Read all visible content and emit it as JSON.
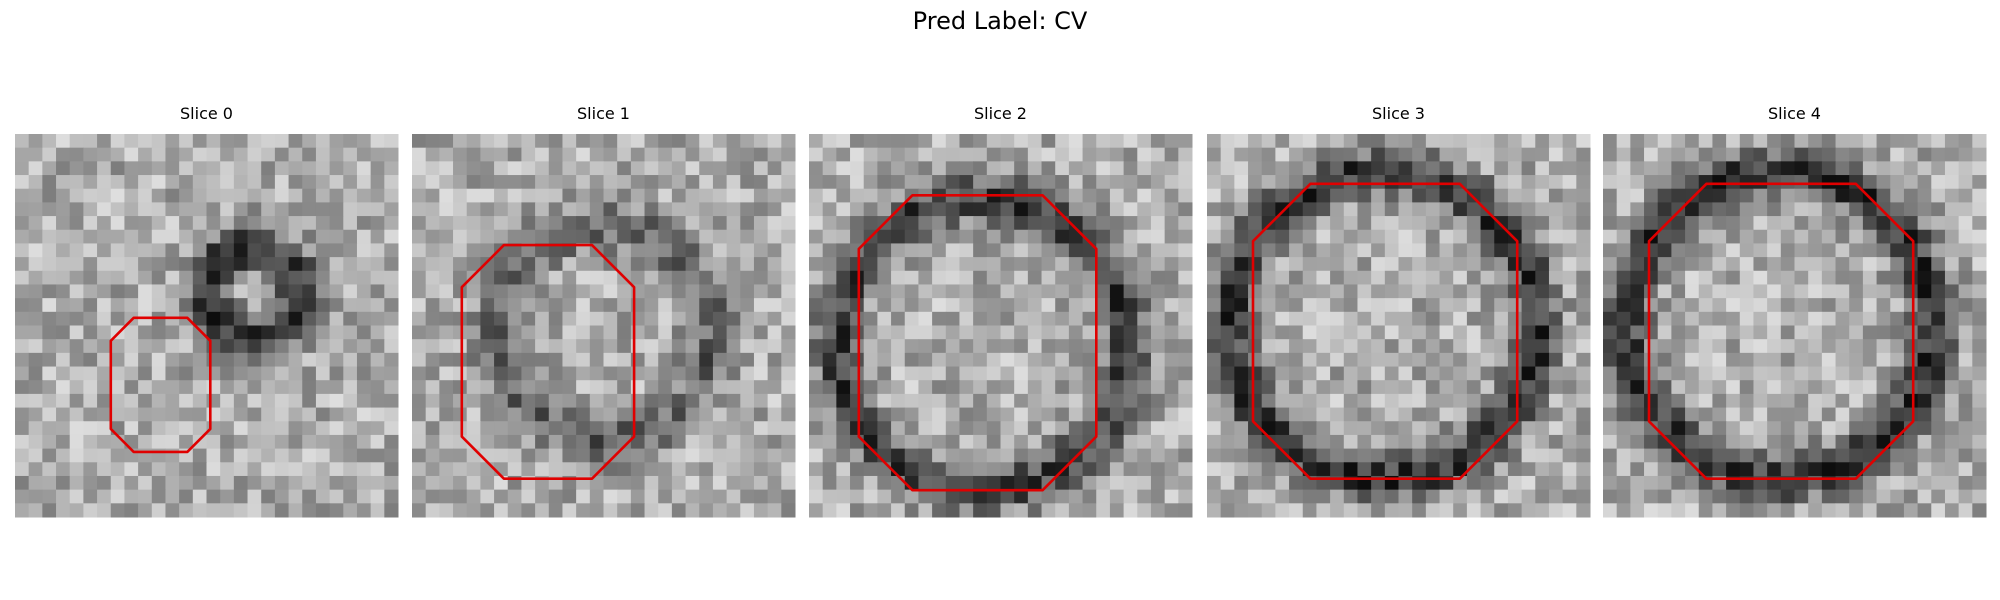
{
  "title": "Pred Label: CV",
  "panels": [
    {
      "title": "Slice 0"
    },
    {
      "title": "Slice 1"
    },
    {
      "title": "Slice 2"
    },
    {
      "title": "Slice 3"
    },
    {
      "title": "Slice 4"
    }
  ]
}
